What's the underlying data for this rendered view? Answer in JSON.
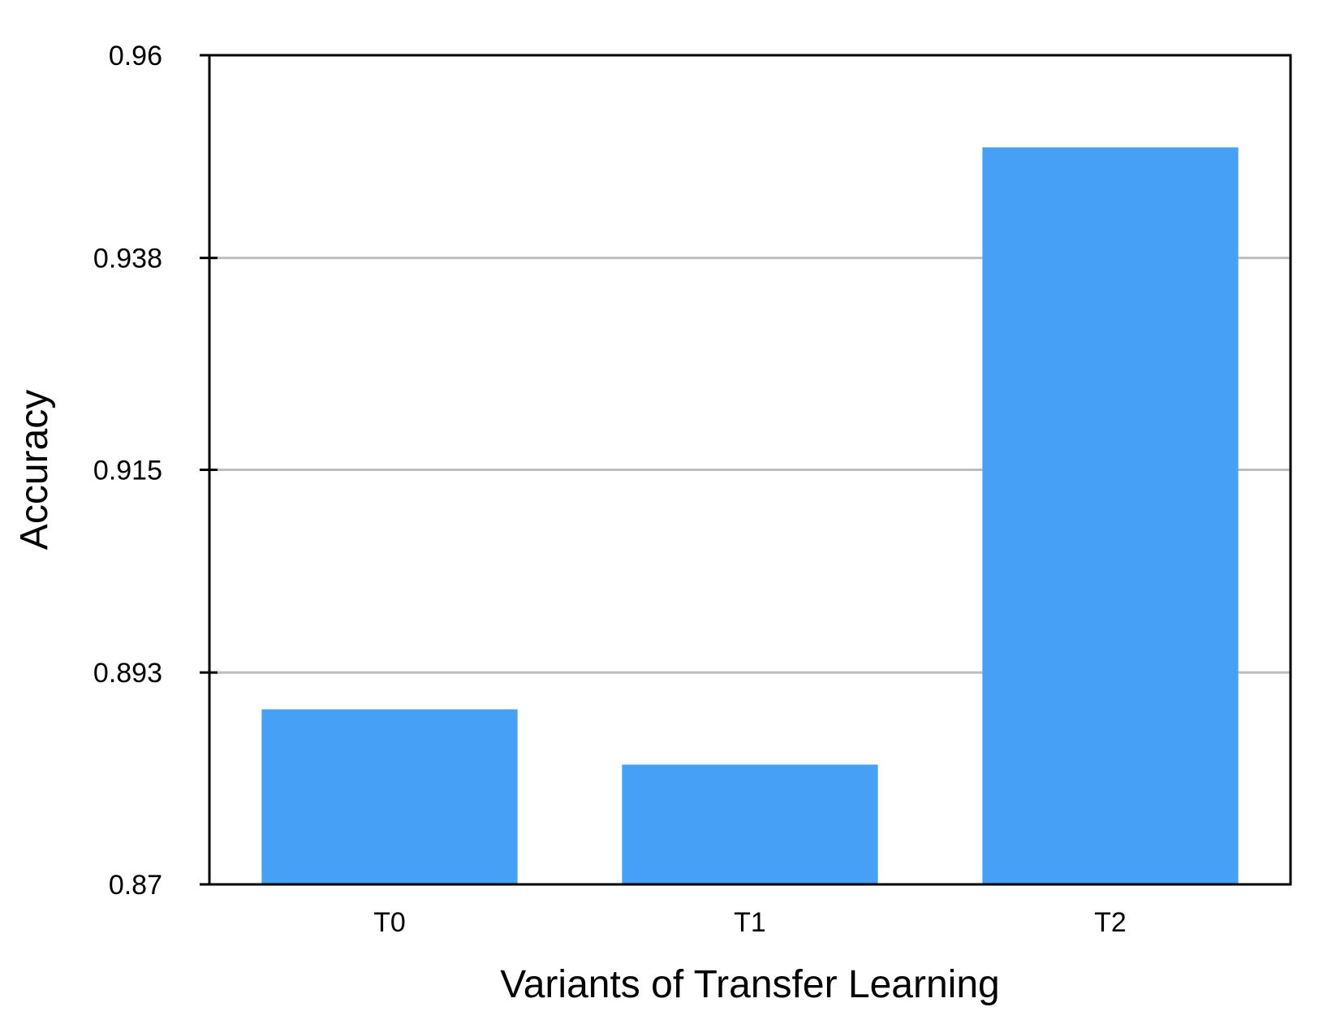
{
  "chart_data": {
    "type": "bar",
    "categories": [
      "T0",
      "T1",
      "T2"
    ],
    "values": [
      0.889,
      0.883,
      0.95
    ],
    "xlabel": "Variants of Transfer Learning",
    "ylabel": "Accuracy",
    "ylim": [
      0.87,
      0.96
    ],
    "yticks": [
      0.87,
      0.893,
      0.915,
      0.938,
      0.96
    ],
    "ytick_labels": [
      "0.87",
      "0.893",
      "0.915",
      "0.938",
      "0.96"
    ],
    "grid": true,
    "legend": "none"
  },
  "colors": {
    "bar": "#45A0F6",
    "grid": "#BDBDBD",
    "axis": "#000000"
  }
}
